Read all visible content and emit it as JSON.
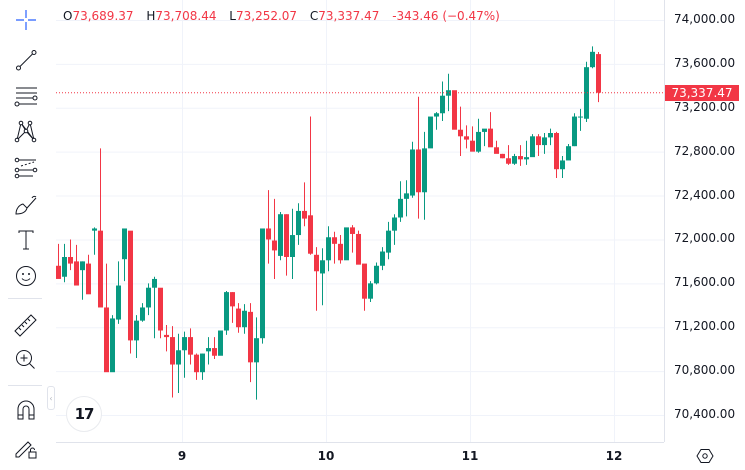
{
  "legend": {
    "open_key": "O",
    "open": "73,689.37",
    "high_key": "H",
    "high": "73,708.44",
    "low_key": "L",
    "low": "73,252.07",
    "close_key": "C",
    "close": "73,337.47",
    "change": "-343.46 (−0.47%)"
  },
  "toolbar": {
    "items": [
      {
        "name": "crosshair-icon"
      },
      {
        "name": "trend-line-icon"
      },
      {
        "name": "horizontal-lines-icon"
      },
      {
        "name": "pattern-icon"
      },
      {
        "name": "fib-retracement-icon"
      },
      {
        "name": "brush-icon"
      },
      {
        "name": "text-icon"
      },
      {
        "name": "emoji-icon"
      },
      {
        "name": "ruler-icon"
      },
      {
        "name": "zoom-in-icon"
      },
      {
        "name": "magnet-icon"
      },
      {
        "name": "lock-drawings-icon"
      }
    ],
    "collapse_glyph": "‹"
  },
  "price_axis": {
    "labels": [
      "74,000.00",
      "73,600.00",
      "73,200.00",
      "72,800.00",
      "72,400.00",
      "72,000.00",
      "71,600.00",
      "71,200.00",
      "70,800.00",
      "70,400.00"
    ],
    "current_price": "73,337.47"
  },
  "time_axis": {
    "labels": [
      "9",
      "10",
      "11",
      "12"
    ]
  },
  "logo": {
    "text": "17"
  },
  "colors": {
    "up": "#089981",
    "down": "#f23645",
    "grid": "#f0f3fa",
    "text": "#131722"
  },
  "chart_data": {
    "type": "candlestick",
    "title": "",
    "xlabel": "",
    "ylabel": "",
    "ylim": [
      70150,
      74150
    ],
    "x_ticks": [
      "9",
      "10",
      "11",
      "12"
    ],
    "y_ticks": [
      74000,
      73600,
      73200,
      72800,
      72400,
      72000,
      71600,
      71200,
      70800,
      70400
    ],
    "last_price": 73337.47,
    "last_bar": {
      "open": 73689.37,
      "high": 73708.44,
      "low": 73252.07,
      "close": 73337.47
    },
    "candles": [
      [
        71720,
        71750,
        71380,
        71480
      ],
      [
        71480,
        71610,
        71300,
        71280
      ],
      [
        71340,
        71450,
        71270,
        71260
      ],
      [
        71280,
        71670,
        71250,
        71620
      ],
      [
        71620,
        71830,
        71580,
        71760
      ],
      [
        71760,
        71980,
        71640,
        71760
      ],
      [
        71760,
        71960,
        71670,
        71640
      ],
      [
        71660,
        71960,
        71610,
        71840
      ],
      [
        71840,
        72000,
        71720,
        71780
      ],
      [
        71800,
        71950,
        71670,
        71580
      ],
      [
        71720,
        71800,
        71450,
        71800
      ],
      [
        71780,
        71860,
        71520,
        71500
      ],
      [
        72080,
        72110,
        71860,
        72100
      ],
      [
        72080,
        72830,
        71450,
        71380
      ],
      [
        71380,
        71780,
        70810,
        70790
      ],
      [
        70790,
        71310,
        70800,
        71280
      ],
      [
        71270,
        71800,
        71230,
        71580
      ],
      [
        71820,
        72020,
        71620,
        72100
      ],
      [
        72080,
        72050,
        70960,
        71080
      ],
      [
        71080,
        71310,
        70920,
        71260
      ],
      [
        71260,
        71420,
        71250,
        71380
      ],
      [
        71380,
        71600,
        71310,
        71560
      ],
      [
        71560,
        71660,
        71100,
        71640
      ],
      [
        71560,
        71540,
        71100,
        71170
      ],
      [
        71130,
        71220,
        70980,
        71110
      ],
      [
        71110,
        71210,
        70560,
        70860
      ],
      [
        70860,
        71140,
        70600,
        70990
      ],
      [
        70990,
        71160,
        70740,
        71110
      ],
      [
        71110,
        71190,
        70860,
        70950
      ],
      [
        70950,
        70960,
        70720,
        70790
      ],
      [
        70790,
        70960,
        70720,
        70960
      ],
      [
        70980,
        71110,
        70860,
        71010
      ],
      [
        71010,
        71110,
        70910,
        70940
      ],
      [
        70940,
        71110,
        71010,
        71170
      ],
      [
        71170,
        71530,
        71130,
        71520
      ],
      [
        71520,
        71520,
        71240,
        71390
      ],
      [
        71370,
        71420,
        71150,
        71200
      ],
      [
        71200,
        71410,
        71140,
        71350
      ],
      [
        71340,
        71420,
        70700,
        70880
      ],
      [
        70880,
        71290,
        70540,
        71100
      ],
      [
        71100,
        72090,
        71050,
        72100
      ],
      [
        72100,
        72450,
        71780,
        72000
      ],
      [
        71990,
        72370,
        71640,
        71900
      ],
      [
        71850,
        72250,
        71810,
        72230
      ],
      [
        72230,
        72230,
        71670,
        71840
      ],
      [
        71840,
        72280,
        71640,
        72040
      ],
      [
        72040,
        72330,
        71950,
        72260
      ],
      [
        72260,
        72520,
        72120,
        72190
      ],
      [
        72220,
        73120,
        71860,
        71870
      ],
      [
        71860,
        71930,
        71350,
        71710
      ],
      [
        71690,
        71920,
        71400,
        71810
      ],
      [
        71810,
        72120,
        71710,
        72020
      ],
      [
        72020,
        72070,
        71780,
        71960
      ],
      [
        71960,
        72040,
        71780,
        71810
      ],
      [
        71810,
        72000,
        71880,
        72110
      ],
      [
        72110,
        72130,
        71880,
        72050
      ],
      [
        72050,
        72080,
        71780,
        71770
      ],
      [
        71780,
        71730,
        71350,
        71460
      ],
      [
        71460,
        71620,
        71430,
        71600
      ],
      [
        71600,
        71790,
        71590,
        71760
      ],
      [
        71760,
        71930,
        71720,
        71890
      ],
      [
        71880,
        72160,
        71820,
        72080
      ],
      [
        72080,
        72230,
        71950,
        72200
      ],
      [
        72200,
        72530,
        72160,
        72370
      ],
      [
        72370,
        72540,
        72210,
        72420
      ],
      [
        72400,
        72890,
        72380,
        72820
      ],
      [
        72820,
        73300,
        72190,
        72430
      ],
      [
        72430,
        72980,
        72180,
        72830
      ],
      [
        72830,
        73080,
        72920,
        73120
      ],
      [
        73120,
        73160,
        73000,
        73150
      ],
      [
        73150,
        73440,
        73080,
        73310
      ],
      [
        73310,
        73510,
        73170,
        73360
      ],
      [
        73360,
        73350,
        73110,
        73000
      ],
      [
        73000,
        73210,
        72760,
        72940
      ],
      [
        72940,
        73040,
        72830,
        72910
      ],
      [
        72900,
        73030,
        72830,
        72800
      ],
      [
        72800,
        73100,
        72790,
        72980
      ],
      [
        72980,
        73000,
        72850,
        73010
      ],
      [
        73010,
        73160,
        72880,
        72840
      ],
      [
        72840,
        72900,
        72790,
        72780
      ],
      [
        72780,
        72780,
        72740,
        72740
      ],
      [
        72740,
        72860,
        72680,
        72690
      ],
      [
        72690,
        72780,
        72680,
        72760
      ],
      [
        72760,
        72860,
        72670,
        72730
      ],
      [
        72730,
        72900,
        72680,
        72750
      ],
      [
        72750,
        72960,
        72780,
        72940
      ],
      [
        72940,
        72960,
        72760,
        72860
      ],
      [
        72860,
        72970,
        72780,
        72930
      ],
      [
        72930,
        73010,
        72860,
        72970
      ],
      [
        72970,
        72980,
        72560,
        72640
      ],
      [
        72640,
        72760,
        72560,
        72720
      ],
      [
        72720,
        72870,
        72730,
        72850
      ],
      [
        72850,
        73150,
        72850,
        73120
      ],
      [
        73120,
        73190,
        72990,
        73120
      ],
      [
        73100,
        73620,
        73070,
        73570
      ],
      [
        73570,
        73760,
        73560,
        73710
      ],
      [
        73689.37,
        73708.44,
        73252.07,
        73337.47
      ]
    ]
  }
}
